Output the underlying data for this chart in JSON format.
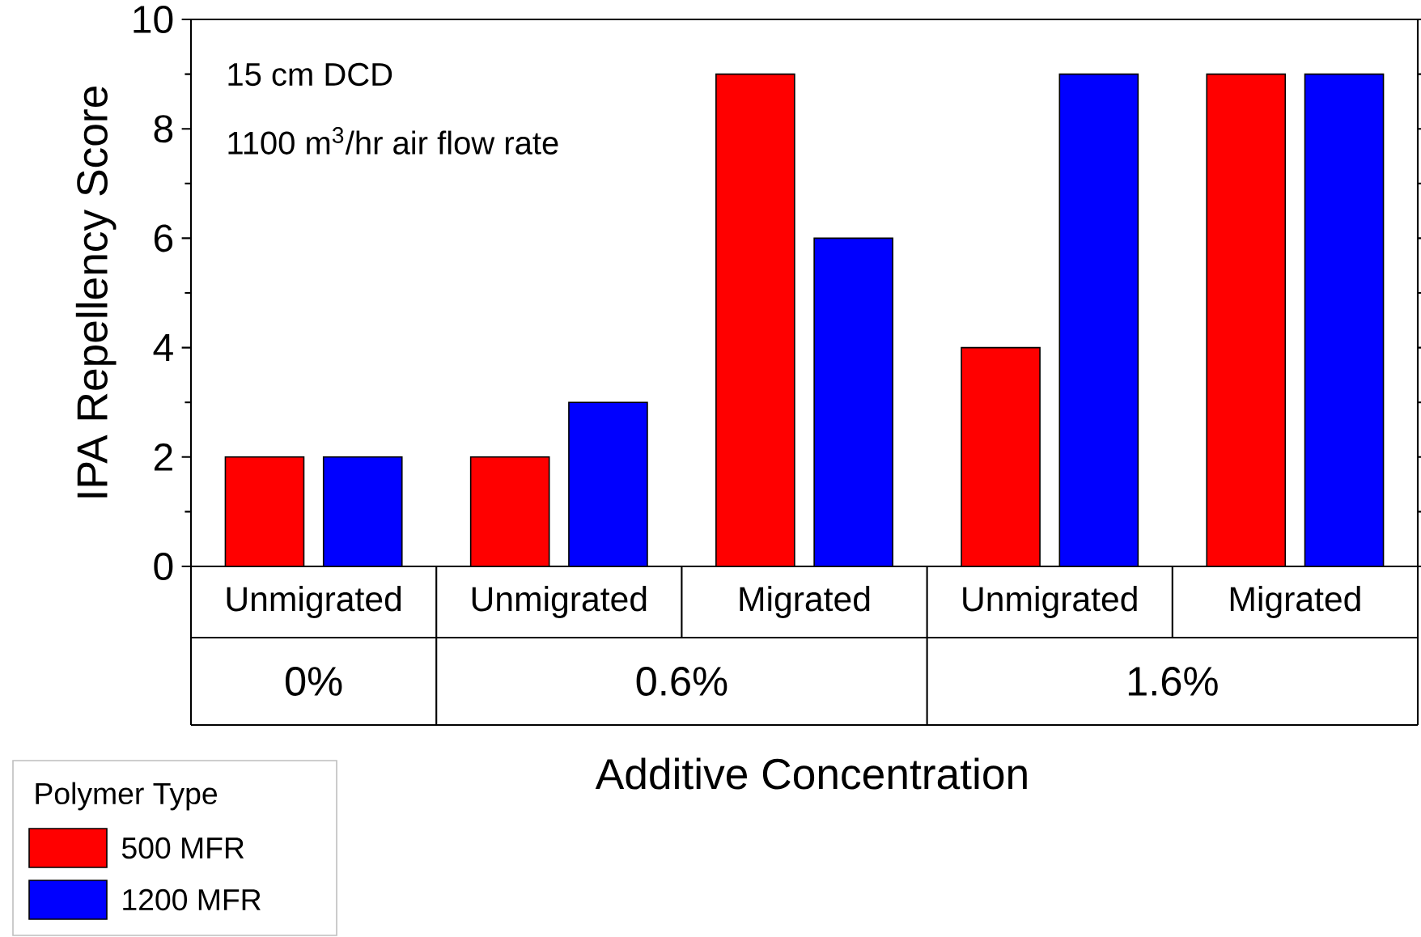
{
  "chart_data": {
    "type": "bar",
    "xlabel": "Additive Concentration",
    "ylabel": "IPA Repellency Score",
    "legend_title": "Polymer Type",
    "legend": "bottom left",
    "categories": [
      "Unmigrated",
      "Unmigrated",
      "Migrated",
      "Unmigrated",
      "Migrated"
    ],
    "series": [
      {
        "name": "500 MFR",
        "color": "#ff0000",
        "values": [
          2,
          2,
          9,
          4,
          9
        ]
      },
      {
        "name": "1200 MFR",
        "color": "#0000ff",
        "values": [
          2,
          3,
          6,
          9,
          9
        ]
      }
    ],
    "ylim": [
      0,
      10
    ],
    "yticks": [
      0,
      2,
      4,
      6,
      8,
      10
    ],
    "annotations": [
      "15 cm DCD",
      "1100 m$^{3}$/hr air flow rate",
      "0%",
      "0.6%",
      "1.6%"
    ]
  }
}
